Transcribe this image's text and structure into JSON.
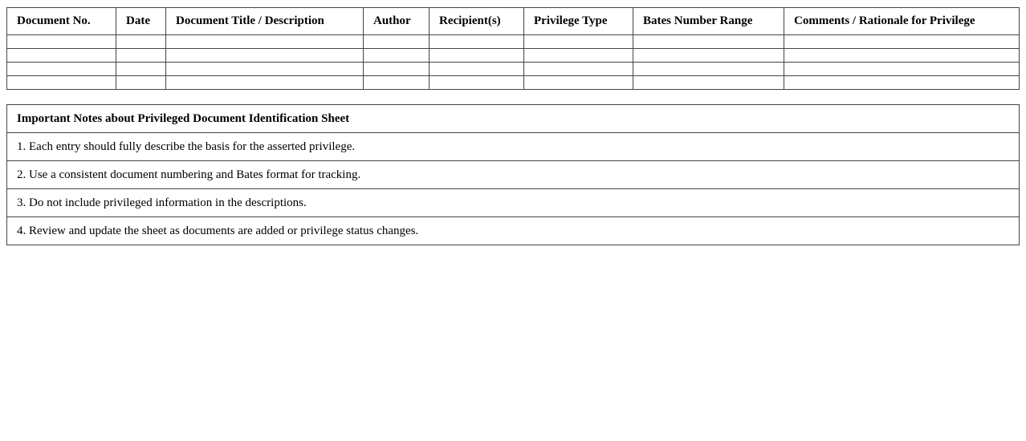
{
  "log_table": {
    "headers": [
      "Document No.",
      "Date",
      "Document Title / Description",
      "Author",
      "Recipient(s)",
      "Privilege Type",
      "Bates Number Range",
      "Comments / Rationale for Privilege"
    ],
    "empty_rows": 4
  },
  "notes": {
    "title": "Important Notes about Privileged Document Identification Sheet",
    "items": [
      "1. Each entry should fully describe the basis for the asserted privilege.",
      "2. Use a consistent document numbering and Bates format for tracking.",
      "3. Do not include privileged information in the descriptions.",
      "4. Review and update the sheet as documents are added or privilege status changes."
    ]
  }
}
